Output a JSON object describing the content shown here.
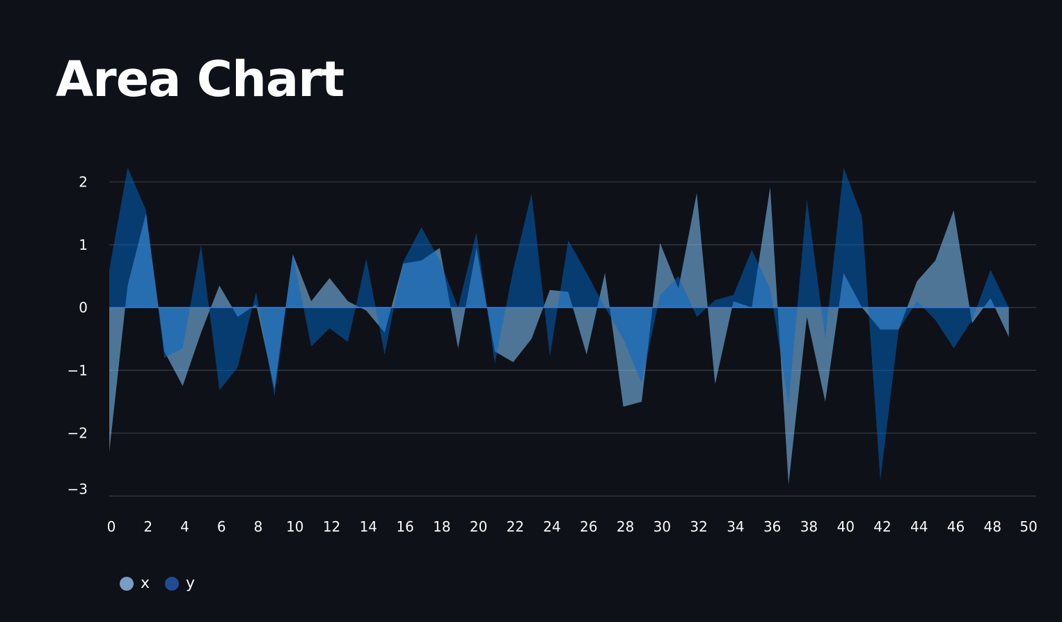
{
  "page": {
    "title": "Area Chart"
  },
  "colors": {
    "background": "#0e1117",
    "grid": "#31333f",
    "tick_text": "#fafafa",
    "x_series": "#83c9ff",
    "y_series": "#0068c9"
  },
  "chart_data": {
    "type": "area",
    "stacked": false,
    "grid": true,
    "legend_position": "bottom-left",
    "xlim": [
      0,
      50
    ],
    "ylim": [
      -3,
      2.3
    ],
    "x_ticks": [
      "0",
      "2",
      "4",
      "6",
      "8",
      "10",
      "12",
      "14",
      "16",
      "18",
      "20",
      "22",
      "24",
      "26",
      "28",
      "30",
      "32",
      "34",
      "36",
      "38",
      "40",
      "42",
      "44",
      "46",
      "48",
      "50"
    ],
    "y_ticks": [
      2,
      1,
      0,
      -1,
      -2,
      -3
    ],
    "y_tick_labels": [
      "2",
      "1",
      "0",
      "−1",
      "−2",
      "−3"
    ],
    "x": [
      0,
      1,
      2,
      3,
      4,
      5,
      6,
      7,
      8,
      9,
      10,
      11,
      12,
      13,
      14,
      15,
      16,
      17,
      18,
      19,
      20,
      21,
      22,
      23,
      24,
      25,
      26,
      27,
      28,
      29,
      30,
      31,
      32,
      33,
      34,
      35,
      36,
      37,
      38,
      39,
      40,
      41,
      42,
      43,
      44,
      45,
      46,
      47,
      48,
      49
    ],
    "series": [
      {
        "name": "x",
        "color": "#83c9ff",
        "values": [
          -2.3,
          0.35,
          1.5,
          -0.7,
          -1.25,
          -0.4,
          0.35,
          -0.15,
          0.05,
          -1.3,
          0.85,
          0.1,
          0.47,
          0.1,
          -0.05,
          -0.4,
          0.7,
          0.75,
          0.95,
          -0.65,
          0.95,
          -0.7,
          -0.87,
          -0.5,
          0.28,
          0.25,
          -0.75,
          0.55,
          -1.58,
          -1.5,
          1.03,
          0.3,
          1.82,
          -1.22,
          0.1,
          0.0,
          1.92,
          -2.82,
          -0.15,
          -1.5,
          0.55,
          0.0,
          -0.35,
          -0.35,
          0.42,
          0.75,
          1.55,
          -0.25,
          0.15,
          -0.47
        ]
      },
      {
        "name": "y",
        "color": "#0068c9",
        "values": [
          0.6,
          2.23,
          1.55,
          -0.8,
          -0.65,
          1.0,
          -1.32,
          -0.95,
          0.25,
          -1.42,
          0.85,
          -0.62,
          -0.33,
          -0.55,
          0.78,
          -0.75,
          0.72,
          1.28,
          0.75,
          0.0,
          1.2,
          -0.9,
          0.6,
          1.82,
          -0.78,
          1.07,
          0.55,
          0.0,
          -0.5,
          -1.2,
          0.2,
          0.5,
          -0.15,
          0.12,
          0.2,
          0.92,
          0.3,
          -1.55,
          1.72,
          -0.5,
          2.23,
          1.45,
          -2.75,
          -0.35,
          0.1,
          -0.2,
          -0.65,
          -0.2,
          0.6,
          0.0
        ]
      }
    ]
  }
}
